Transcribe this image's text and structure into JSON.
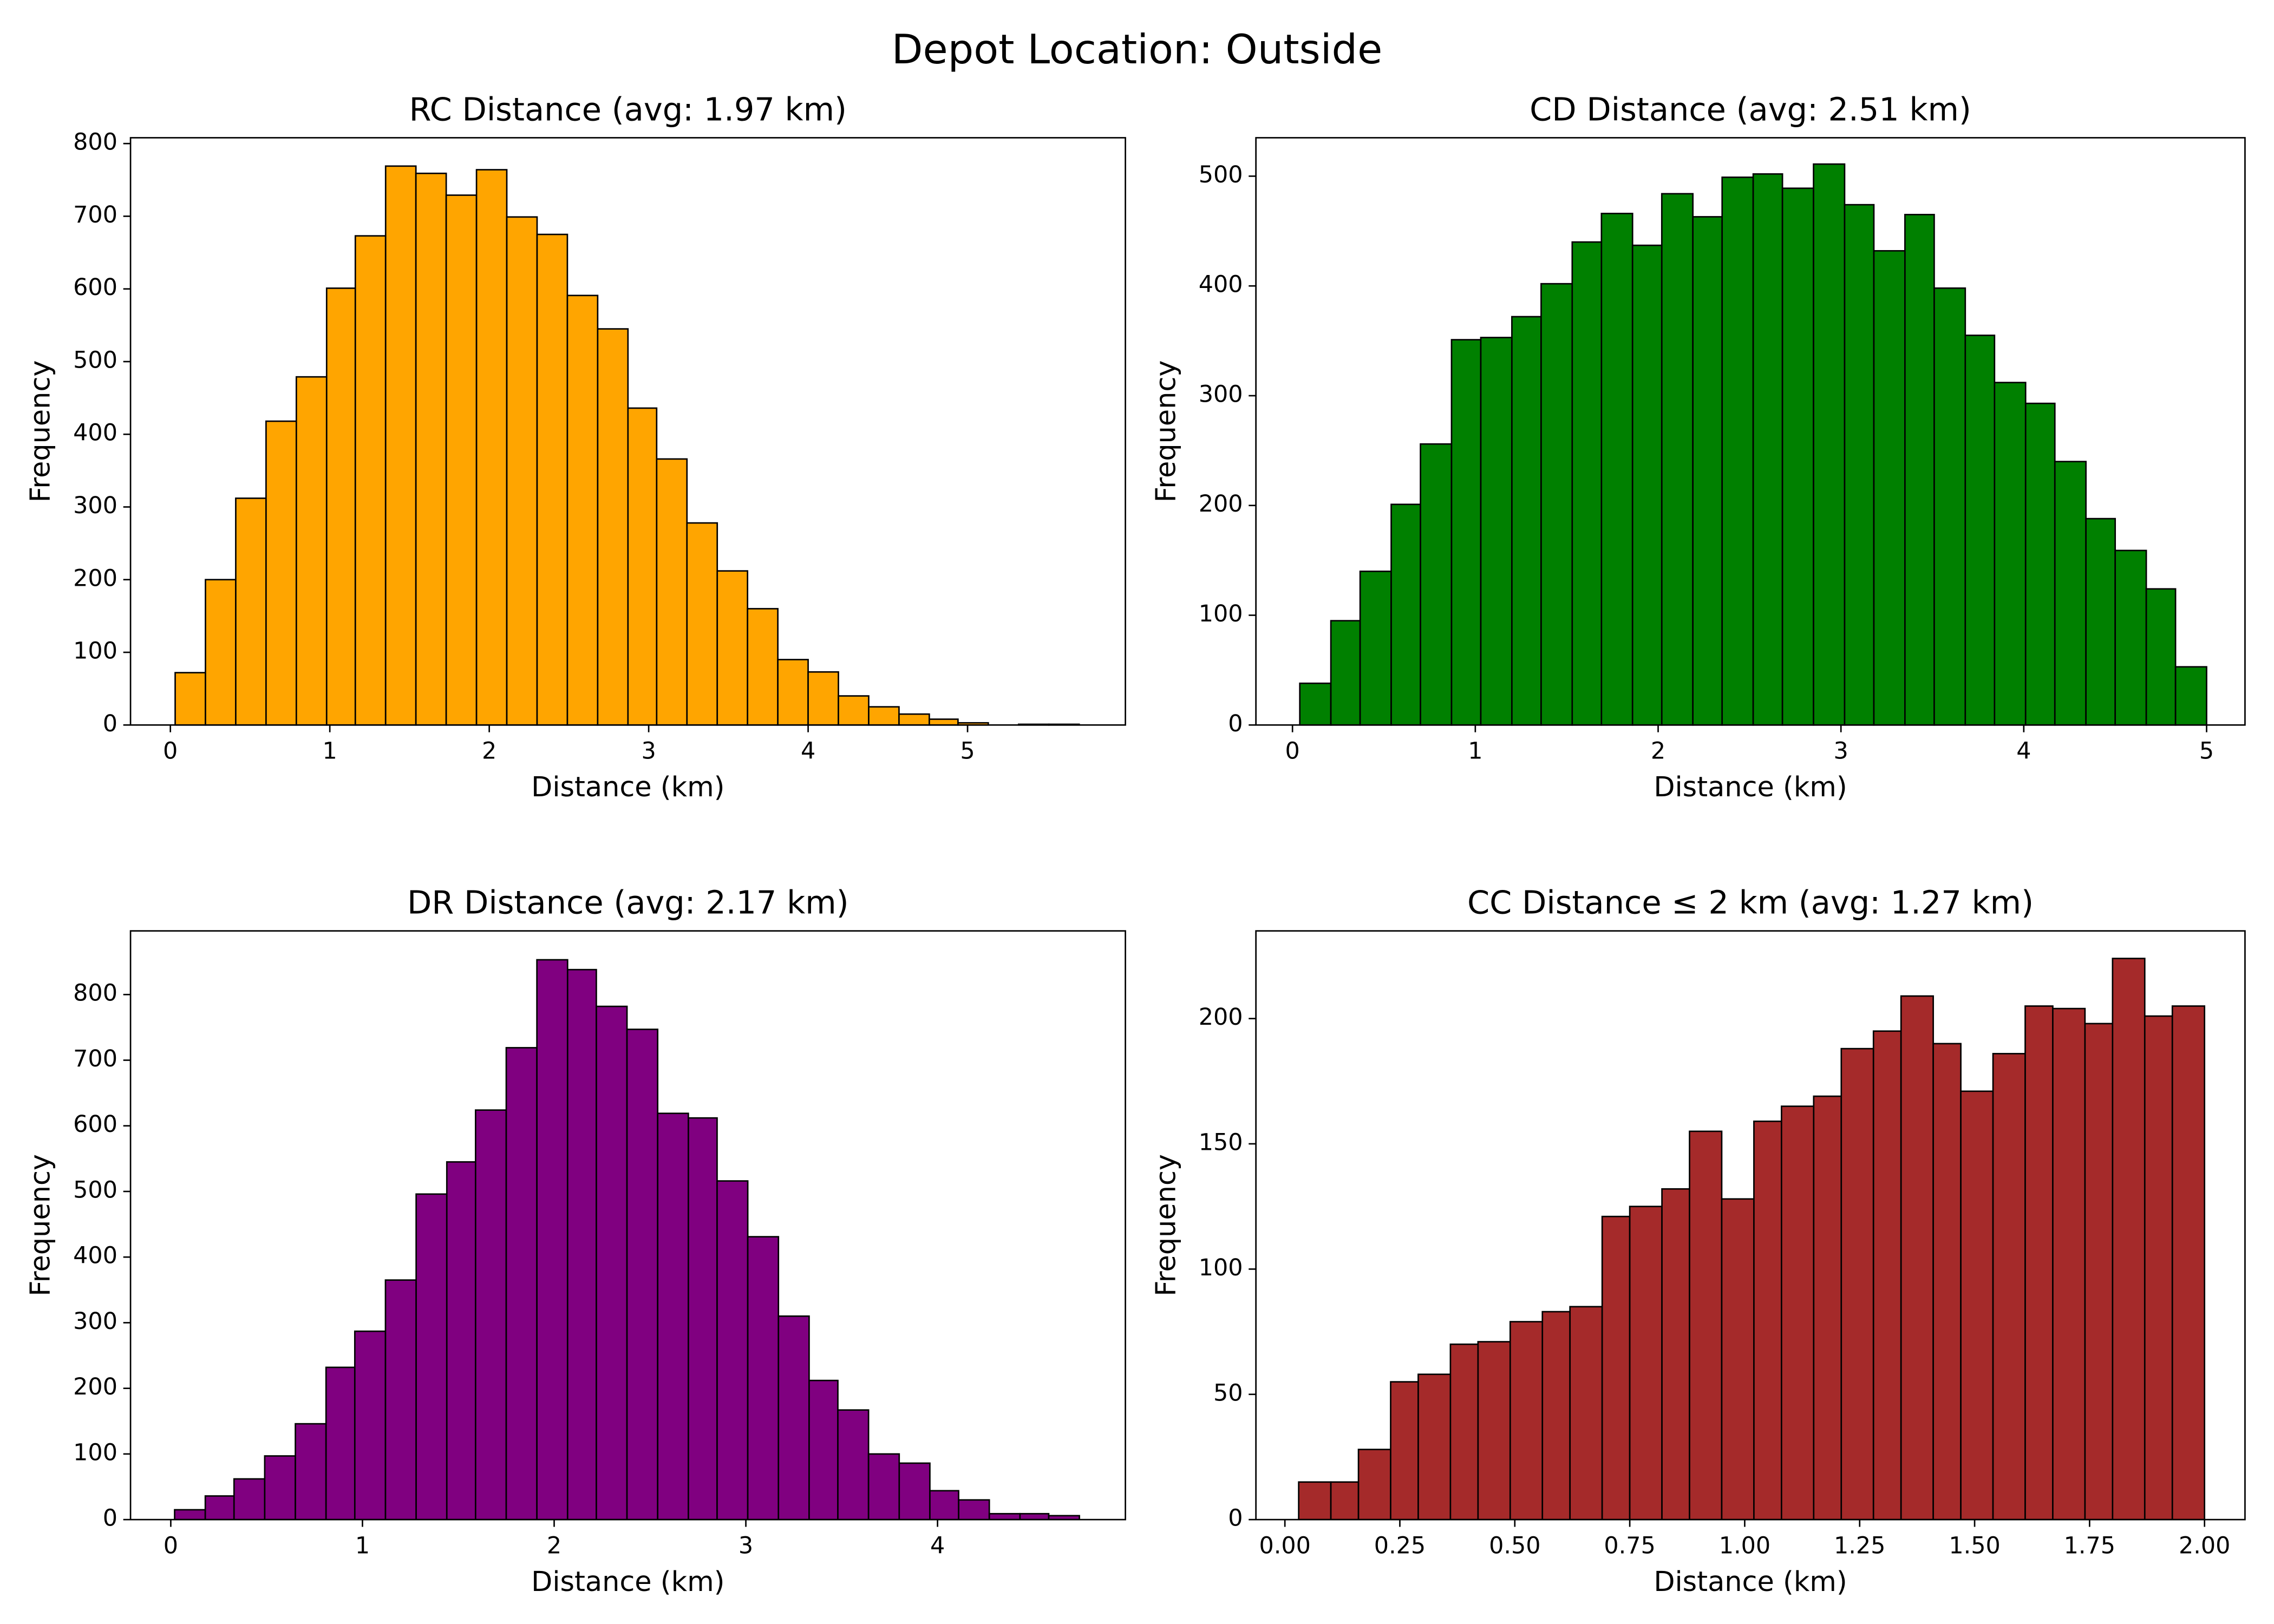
{
  "title": "Depot Location: Outside",
  "chart_data": [
    {
      "type": "histogram",
      "title": "RC Distance (avg: 1.97 km)",
      "xlabel": "Distance (km)",
      "ylabel": "Frequency",
      "color": "#ffa500",
      "edgecolor": "#000000",
      "bins": [
        0.03,
        0.22,
        0.41,
        0.6,
        0.79,
        0.98,
        1.16,
        1.35,
        1.54,
        1.73,
        1.92,
        2.11,
        2.3,
        2.49,
        2.68,
        2.87,
        3.05,
        3.24,
        3.43,
        3.62,
        3.81,
        4.0,
        4.19,
        4.38,
        4.57,
        4.76,
        4.94,
        5.13,
        5.32,
        5.51,
        5.7
      ],
      "values": [
        72,
        200,
        312,
        418,
        479,
        601,
        673,
        769,
        759,
        729,
        764,
        699,
        675,
        591,
        545,
        436,
        366,
        278,
        212,
        160,
        90,
        73,
        40,
        25,
        15,
        8,
        3,
        0,
        1,
        1
      ],
      "xlim": [
        -0.25,
        5.99
      ],
      "ylim": [
        0,
        808
      ],
      "xticks": [
        0,
        1,
        2,
        3,
        4,
        5
      ],
      "yticks": [
        0,
        100,
        200,
        300,
        400,
        500,
        600,
        700,
        800
      ]
    },
    {
      "type": "histogram",
      "title": "CD Distance (avg: 2.51 km)",
      "xlabel": "Distance (km)",
      "ylabel": "Frequency",
      "color": "#008000",
      "edgecolor": "#000000",
      "bins": [
        0.04,
        0.21,
        0.37,
        0.54,
        0.7,
        0.87,
        1.03,
        1.2,
        1.36,
        1.53,
        1.69,
        1.86,
        2.02,
        2.19,
        2.35,
        2.52,
        2.68,
        2.85,
        3.02,
        3.18,
        3.35,
        3.51,
        3.68,
        3.84,
        4.01,
        4.17,
        4.34,
        4.5,
        4.67,
        4.83,
        5.0
      ],
      "values": [
        38,
        95,
        140,
        201,
        256,
        351,
        353,
        372,
        402,
        440,
        466,
        437,
        484,
        463,
        499,
        502,
        489,
        511,
        474,
        432,
        465,
        398,
        355,
        312,
        293,
        240,
        188,
        159,
        124,
        53
      ],
      "xlim": [
        -0.2,
        5.21
      ],
      "ylim": [
        0,
        535
      ],
      "xticks": [
        0,
        1,
        2,
        3,
        4,
        5
      ],
      "yticks": [
        0,
        100,
        200,
        300,
        400,
        500
      ]
    },
    {
      "type": "histogram",
      "title": "DR Distance (avg: 2.17 km)",
      "xlabel": "Distance (km)",
      "ylabel": "Frequency",
      "color": "#800080",
      "edgecolor": "#000000",
      "bins": [
        0.02,
        0.18,
        0.33,
        0.49,
        0.65,
        0.81,
        0.96,
        1.12,
        1.28,
        1.44,
        1.59,
        1.75,
        1.91,
        2.07,
        2.22,
        2.38,
        2.54,
        2.7,
        2.85,
        3.01,
        3.17,
        3.33,
        3.48,
        3.64,
        3.8,
        3.96,
        4.11,
        4.27,
        4.43,
        4.58,
        4.74
      ],
      "values": [
        15,
        36,
        62,
        97,
        146,
        232,
        287,
        365,
        496,
        545,
        624,
        719,
        853,
        838,
        782,
        747,
        619,
        612,
        516,
        431,
        310,
        212,
        167,
        100,
        86,
        44,
        30,
        9,
        9,
        6
      ],
      "xlim": [
        -0.21,
        4.98
      ],
      "ylim": [
        0,
        897
      ],
      "xticks": [
        0,
        1,
        2,
        3,
        4
      ],
      "yticks": [
        0,
        100,
        200,
        300,
        400,
        500,
        600,
        700,
        800
      ]
    },
    {
      "type": "histogram",
      "title": "CC Distance ≤ 2 km (avg: 1.27 km)",
      "xlabel": "Distance (km)",
      "ylabel": "Frequency",
      "color": "#a52a2a",
      "edgecolor": "#000000",
      "bins": [
        0.03,
        0.1,
        0.16,
        0.23,
        0.29,
        0.36,
        0.42,
        0.49,
        0.56,
        0.62,
        0.69,
        0.75,
        0.82,
        0.88,
        0.95,
        1.02,
        1.08,
        1.15,
        1.21,
        1.28,
        1.34,
        1.41,
        1.47,
        1.54,
        1.61,
        1.67,
        1.74,
        1.8,
        1.87,
        1.93,
        2.0
      ],
      "values": [
        15,
        15,
        28,
        55,
        58,
        70,
        71,
        79,
        83,
        85,
        121,
        125,
        132,
        155,
        128,
        159,
        165,
        169,
        188,
        195,
        209,
        190,
        171,
        186,
        205,
        204,
        198,
        224,
        201,
        205
      ],
      "xlim": [
        -0.063,
        2.088
      ],
      "ylim": [
        0,
        235
      ],
      "xticks": [
        {
          "value": 0,
          "label": "0.00"
        },
        {
          "value": 0.25,
          "label": "0.25"
        },
        {
          "value": 0.5,
          "label": "0.50"
        },
        {
          "value": 0.75,
          "label": "0.75"
        },
        {
          "value": 1,
          "label": "1.00"
        },
        {
          "value": 1.25,
          "label": "1.25"
        },
        {
          "value": 1.5,
          "label": "1.50"
        },
        {
          "value": 1.75,
          "label": "1.75"
        },
        {
          "value": 2,
          "label": "2.00"
        }
      ],
      "yticks": [
        0,
        50,
        100,
        150,
        200
      ]
    }
  ]
}
